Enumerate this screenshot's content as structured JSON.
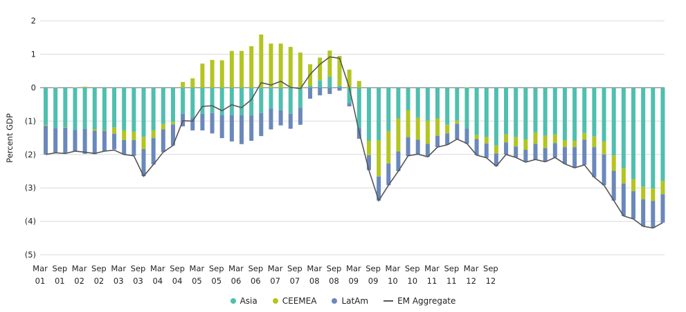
{
  "chart_data": {
    "type": "bar",
    "stacked": true,
    "title": "",
    "xlabel": "",
    "ylabel": "Percent GDP",
    "ylim": [
      -5,
      2
    ],
    "yticks": [
      2,
      1,
      0,
      -1,
      -2,
      -3,
      -4,
      -5
    ],
    "ytick_labels": [
      "2",
      "1",
      "0",
      "(1)",
      "(2)",
      "(3)",
      "(4)",
      "(5)"
    ],
    "grid": true,
    "legend_position": "bottom",
    "xtick_labels": [
      [
        "Mar",
        "01"
      ],
      [
        "Sep",
        "01"
      ],
      [
        "Mar",
        "02"
      ],
      [
        "Sep",
        "02"
      ],
      [
        "Mar",
        "03"
      ],
      [
        "Sep",
        "03"
      ],
      [
        "Mar",
        "04"
      ],
      [
        "Sep",
        "04"
      ],
      [
        "Mar",
        "05"
      ],
      [
        "Sep",
        "05"
      ],
      [
        "Mar",
        "06"
      ],
      [
        "Sep",
        "06"
      ],
      [
        "Mar",
        "07"
      ],
      [
        "Sep",
        "07"
      ],
      [
        "Mar",
        "08"
      ],
      [
        "Sep",
        "08"
      ],
      [
        "Mar",
        "09"
      ],
      [
        "Sep",
        "09"
      ],
      [
        "Mar",
        "10"
      ],
      [
        "Sep",
        "10"
      ],
      [
        "Mar",
        "11"
      ],
      [
        "Sep",
        "11"
      ],
      [
        "Mar",
        "12"
      ],
      [
        "Sep",
        "12"
      ]
    ],
    "series": [
      {
        "name": "Asia",
        "type": "bar",
        "color": "#4fbfae",
        "values": [
          -1.12,
          -1.22,
          -1.18,
          -1.27,
          -1.24,
          -1.24,
          -1.27,
          -1.19,
          -1.28,
          -1.32,
          -1.47,
          -1.28,
          -1.09,
          -1.03,
          -0.78,
          -0.9,
          -0.78,
          -0.76,
          -0.82,
          -0.82,
          -0.82,
          -0.83,
          -0.76,
          -0.63,
          -0.68,
          -0.78,
          -0.61,
          0.05,
          0.22,
          0.32,
          0.05,
          -0.46,
          -1.21,
          -1.59,
          -1.57,
          -1.3,
          -0.92,
          -0.68,
          -0.9,
          -0.99,
          -0.92,
          -1.11,
          -0.99,
          -1.23,
          -1.42,
          -1.48,
          -1.73,
          -1.4,
          -1.48,
          -1.55,
          -1.34,
          -1.44,
          -1.4,
          -1.57,
          -1.59,
          -1.36,
          -1.46,
          -1.61,
          -2.03,
          -2.41,
          -2.74,
          -2.97,
          -3.02,
          -2.79
        ]
      },
      {
        "name": "CEEMEA",
        "type": "bar",
        "color": "#b3c520",
        "values": [
          -0.02,
          0.01,
          -0.02,
          0.01,
          0.03,
          -0.05,
          -0.02,
          -0.19,
          -0.29,
          -0.25,
          -0.37,
          -0.23,
          -0.16,
          -0.07,
          0.17,
          0.28,
          0.72,
          0.83,
          0.82,
          1.1,
          1.1,
          1.24,
          1.59,
          1.32,
          1.32,
          1.22,
          1.05,
          0.65,
          0.68,
          0.79,
          0.9,
          0.54,
          0.2,
          -0.43,
          -1.09,
          -0.97,
          -0.99,
          -0.8,
          -0.66,
          -0.69,
          -0.52,
          -0.26,
          -0.09,
          0.01,
          -0.12,
          -0.19,
          -0.24,
          -0.24,
          -0.28,
          -0.31,
          -0.34,
          -0.37,
          -0.26,
          -0.21,
          -0.19,
          -0.2,
          -0.32,
          -0.39,
          -0.46,
          -0.46,
          -0.36,
          -0.37,
          -0.37,
          -0.4
        ]
      },
      {
        "name": "LatAm",
        "type": "bar",
        "color": "#6a88bb",
        "values": [
          -0.86,
          -0.73,
          -0.77,
          -0.63,
          -0.74,
          -0.7,
          -0.6,
          -0.47,
          -0.43,
          -0.47,
          -0.81,
          -0.79,
          -0.68,
          -0.63,
          -0.38,
          -0.38,
          -0.5,
          -0.61,
          -0.69,
          -0.79,
          -0.87,
          -0.76,
          -0.69,
          -0.62,
          -0.45,
          -0.45,
          -0.5,
          -0.33,
          -0.23,
          -0.19,
          -0.09,
          -0.1,
          -0.32,
          -0.45,
          -0.72,
          -0.65,
          -0.59,
          -0.57,
          -0.43,
          -0.39,
          -0.34,
          -0.34,
          -0.46,
          -0.45,
          -0.48,
          -0.43,
          -0.38,
          -0.36,
          -0.33,
          -0.37,
          -0.47,
          -0.41,
          -0.43,
          -0.5,
          -0.62,
          -0.75,
          -0.9,
          -0.92,
          -0.89,
          -0.97,
          -0.83,
          -0.81,
          -0.81,
          -0.85
        ]
      },
      {
        "name": "EM Aggregate",
        "type": "line",
        "color": "#555555",
        "values": [
          -2.0,
          -1.95,
          -1.97,
          -1.9,
          -1.93,
          -1.97,
          -1.9,
          -1.87,
          -2.0,
          -2.04,
          -2.65,
          -2.3,
          -1.93,
          -1.73,
          -0.99,
          -1.0,
          -0.56,
          -0.54,
          -0.69,
          -0.51,
          -0.6,
          -0.36,
          0.15,
          0.08,
          0.19,
          0.01,
          -0.03,
          0.4,
          0.7,
          0.92,
          0.88,
          0.0,
          -1.33,
          -2.47,
          -3.38,
          -2.92,
          -2.5,
          -2.04,
          -1.99,
          -2.07,
          -1.78,
          -1.71,
          -1.54,
          -1.67,
          -2.02,
          -2.1,
          -2.35,
          -2.0,
          -2.09,
          -2.23,
          -2.15,
          -2.22,
          -2.09,
          -2.28,
          -2.4,
          -2.31,
          -2.68,
          -2.92,
          -3.38,
          -3.84,
          -3.93,
          -4.15,
          -4.2,
          -4.04
        ]
      }
    ]
  }
}
